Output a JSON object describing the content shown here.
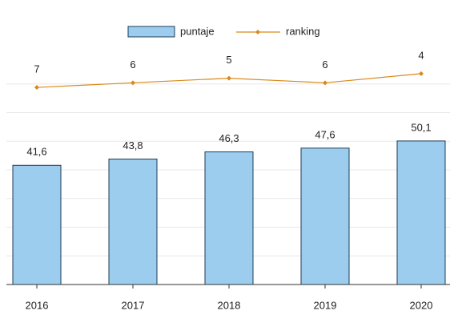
{
  "chart_data": {
    "type": "bar",
    "categories": [
      "2016",
      "2017",
      "2018",
      "2019",
      "2020"
    ],
    "series": [
      {
        "name": "puntaje",
        "type": "bar",
        "color": "#9dcdee",
        "values": [
          41.6,
          43.8,
          46.3,
          47.6,
          50.1
        ],
        "value_labels": [
          "41,6",
          "43,8",
          "46,3",
          "47,6",
          "50,1"
        ]
      },
      {
        "name": "ranking",
        "type": "line",
        "axis": "y2",
        "color": "#d98a1a",
        "values": [
          7,
          6,
          5,
          6,
          4
        ]
      }
    ],
    "ylim": [
      0,
      80
    ],
    "yticks": [
      0,
      10,
      20,
      30,
      40,
      50,
      60,
      70
    ],
    "y2lim": [
      50,
      0
    ],
    "grid": true,
    "legend": "top"
  }
}
